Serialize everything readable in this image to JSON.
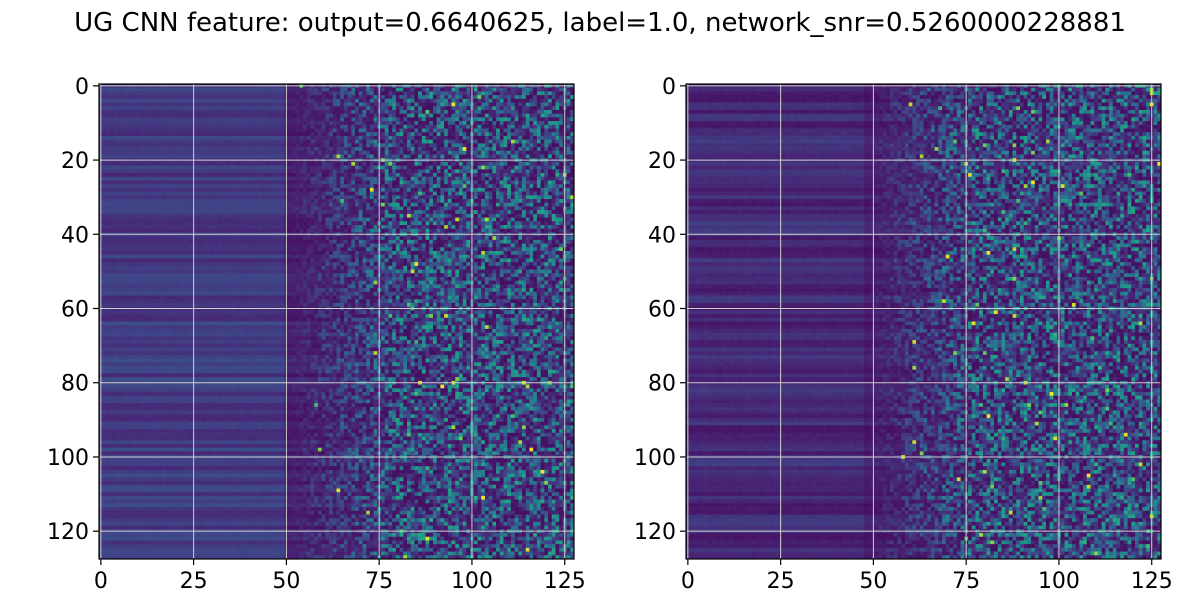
{
  "chart_data": {
    "title": "UG CNN feature: output=0.6640625, label=1.0, network_snr=0.5260000228881",
    "type": "heatmap",
    "colormap": "viridis",
    "grid": true,
    "grid_color": "#d0d0d0",
    "panels": [
      {
        "name": "left",
        "rows": 128,
        "cols": 128,
        "xlim": [
          -0.5,
          127.5
        ],
        "ylim": [
          127.5,
          -0.5
        ],
        "xticks": [
          0,
          25,
          50,
          75,
          100,
          125
        ],
        "yticks": [
          0,
          20,
          40,
          60,
          80,
          100,
          120
        ],
        "xtick_labels": [
          "0",
          "25",
          "50",
          "75",
          "100",
          "125"
        ],
        "ytick_labels": [
          "0",
          "20",
          "40",
          "60",
          "80",
          "100",
          "120"
        ]
      },
      {
        "name": "right",
        "rows": 128,
        "cols": 128,
        "xlim": [
          -0.5,
          127.5
        ],
        "ylim": [
          127.5,
          -0.5
        ],
        "xticks": [
          0,
          25,
          50,
          75,
          100,
          125
        ],
        "yticks": [
          0,
          20,
          40,
          60,
          80,
          100,
          120
        ],
        "xtick_labels": [
          "0",
          "25",
          "50",
          "75",
          "100",
          "125"
        ],
        "ytick_labels": [
          "0",
          "20",
          "40",
          "60",
          "80",
          "100",
          "120"
        ]
      }
    ]
  }
}
